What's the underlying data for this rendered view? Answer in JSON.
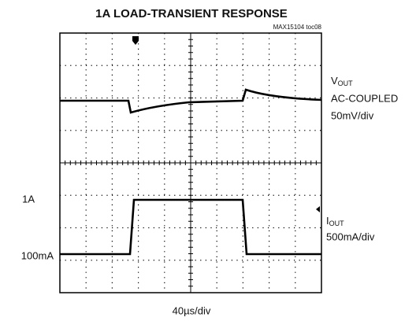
{
  "title": "1A LOAD-TRANSIENT RESPONSE",
  "figure_id": "MAX15104 toc08",
  "left_labels": [
    "1A",
    "100mA"
  ],
  "vout_label": {
    "main": "V",
    "sub": "OUT",
    "lines": [
      "AC-COUPLED",
      "50mV/div"
    ]
  },
  "iout_label": {
    "main": "I",
    "sub": "OUT",
    "lines": [
      "500mA/div"
    ]
  },
  "time_scale": "40µs/div"
}
